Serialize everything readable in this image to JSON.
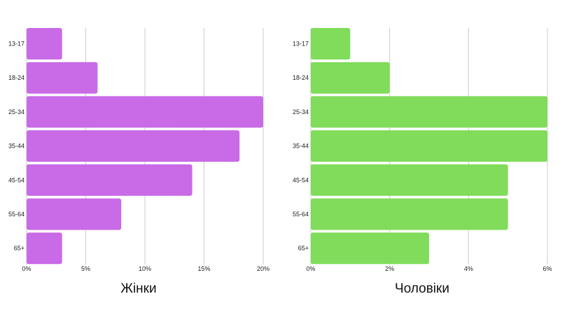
{
  "chart_data": [
    {
      "type": "bar",
      "orientation": "horizontal",
      "title": "Жінки",
      "categories": [
        "13-17",
        "18-24",
        "25-34",
        "35-44",
        "45-54",
        "55-64",
        "65+"
      ],
      "values": [
        3,
        6,
        20,
        18,
        14,
        8,
        3
      ],
      "xlim": [
        0,
        20
      ],
      "xticks": [
        0,
        5,
        10,
        15,
        20
      ],
      "tick_labels": [
        "0%",
        "5%",
        "10%",
        "15%",
        "20%"
      ],
      "unit": "%",
      "color": "#c96ae6",
      "grid": true
    },
    {
      "type": "bar",
      "orientation": "horizontal",
      "title": "Чоловіки",
      "categories": [
        "13-17",
        "18-24",
        "25-34",
        "35-44",
        "45-54",
        "55-64",
        "65+"
      ],
      "values": [
        1,
        2,
        6,
        6,
        5,
        5,
        3
      ],
      "xlim": [
        0,
        6
      ],
      "xticks": [
        0,
        2,
        4,
        6
      ],
      "tick_labels": [
        "0%",
        "2%",
        "4%",
        "6%"
      ],
      "unit": "%",
      "color": "#80dc5a",
      "grid": true
    }
  ]
}
